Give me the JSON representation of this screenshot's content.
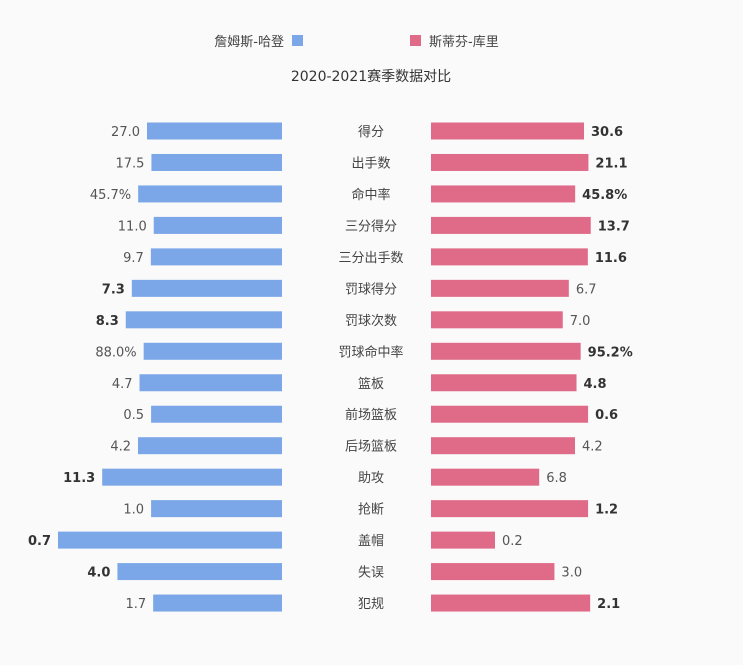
{
  "chart_data": {
    "type": "bar",
    "title": "2020-2021赛季数据对比",
    "legend_placement": "top",
    "categories": [
      "得分",
      "出手数",
      "命中率",
      "三分得分",
      "三分出手数",
      "罚球得分",
      "罚球次数",
      "罚球命中率",
      "篮板",
      "前场篮板",
      "后场篮板",
      "助攻",
      "抢断",
      "盖帽",
      "失误",
      "犯规"
    ],
    "series": [
      {
        "name": "詹姆斯-哈登",
        "color": "#7ba7e8",
        "values": [
          27.0,
          17.5,
          45.7,
          11.0,
          9.7,
          7.3,
          8.3,
          88.0,
          4.7,
          0.5,
          4.2,
          11.3,
          1.0,
          0.7,
          4.0,
          1.7
        ],
        "labels": [
          "27.0",
          "17.5",
          "45.7%",
          "11.0",
          "9.7",
          "7.3",
          "8.3",
          "88.0%",
          "4.7",
          "0.5",
          "4.2",
          "11.3",
          "1.0",
          "0.7",
          "4.0",
          "1.7"
        ]
      },
      {
        "name": "斯蒂芬-库里",
        "color": "#df6b89",
        "values": [
          30.6,
          21.1,
          45.8,
          13.7,
          11.6,
          6.7,
          7.0,
          95.2,
          4.8,
          0.6,
          4.2,
          6.8,
          1.2,
          0.2,
          3.0,
          2.1
        ],
        "labels": [
          "30.6",
          "21.1",
          "45.8%",
          "13.7",
          "11.6",
          "6.7",
          "7.0",
          "95.2%",
          "4.8",
          "0.6",
          "4.2",
          "6.8",
          "1.2",
          "0.2",
          "3.0",
          "2.1"
        ]
      }
    ]
  }
}
